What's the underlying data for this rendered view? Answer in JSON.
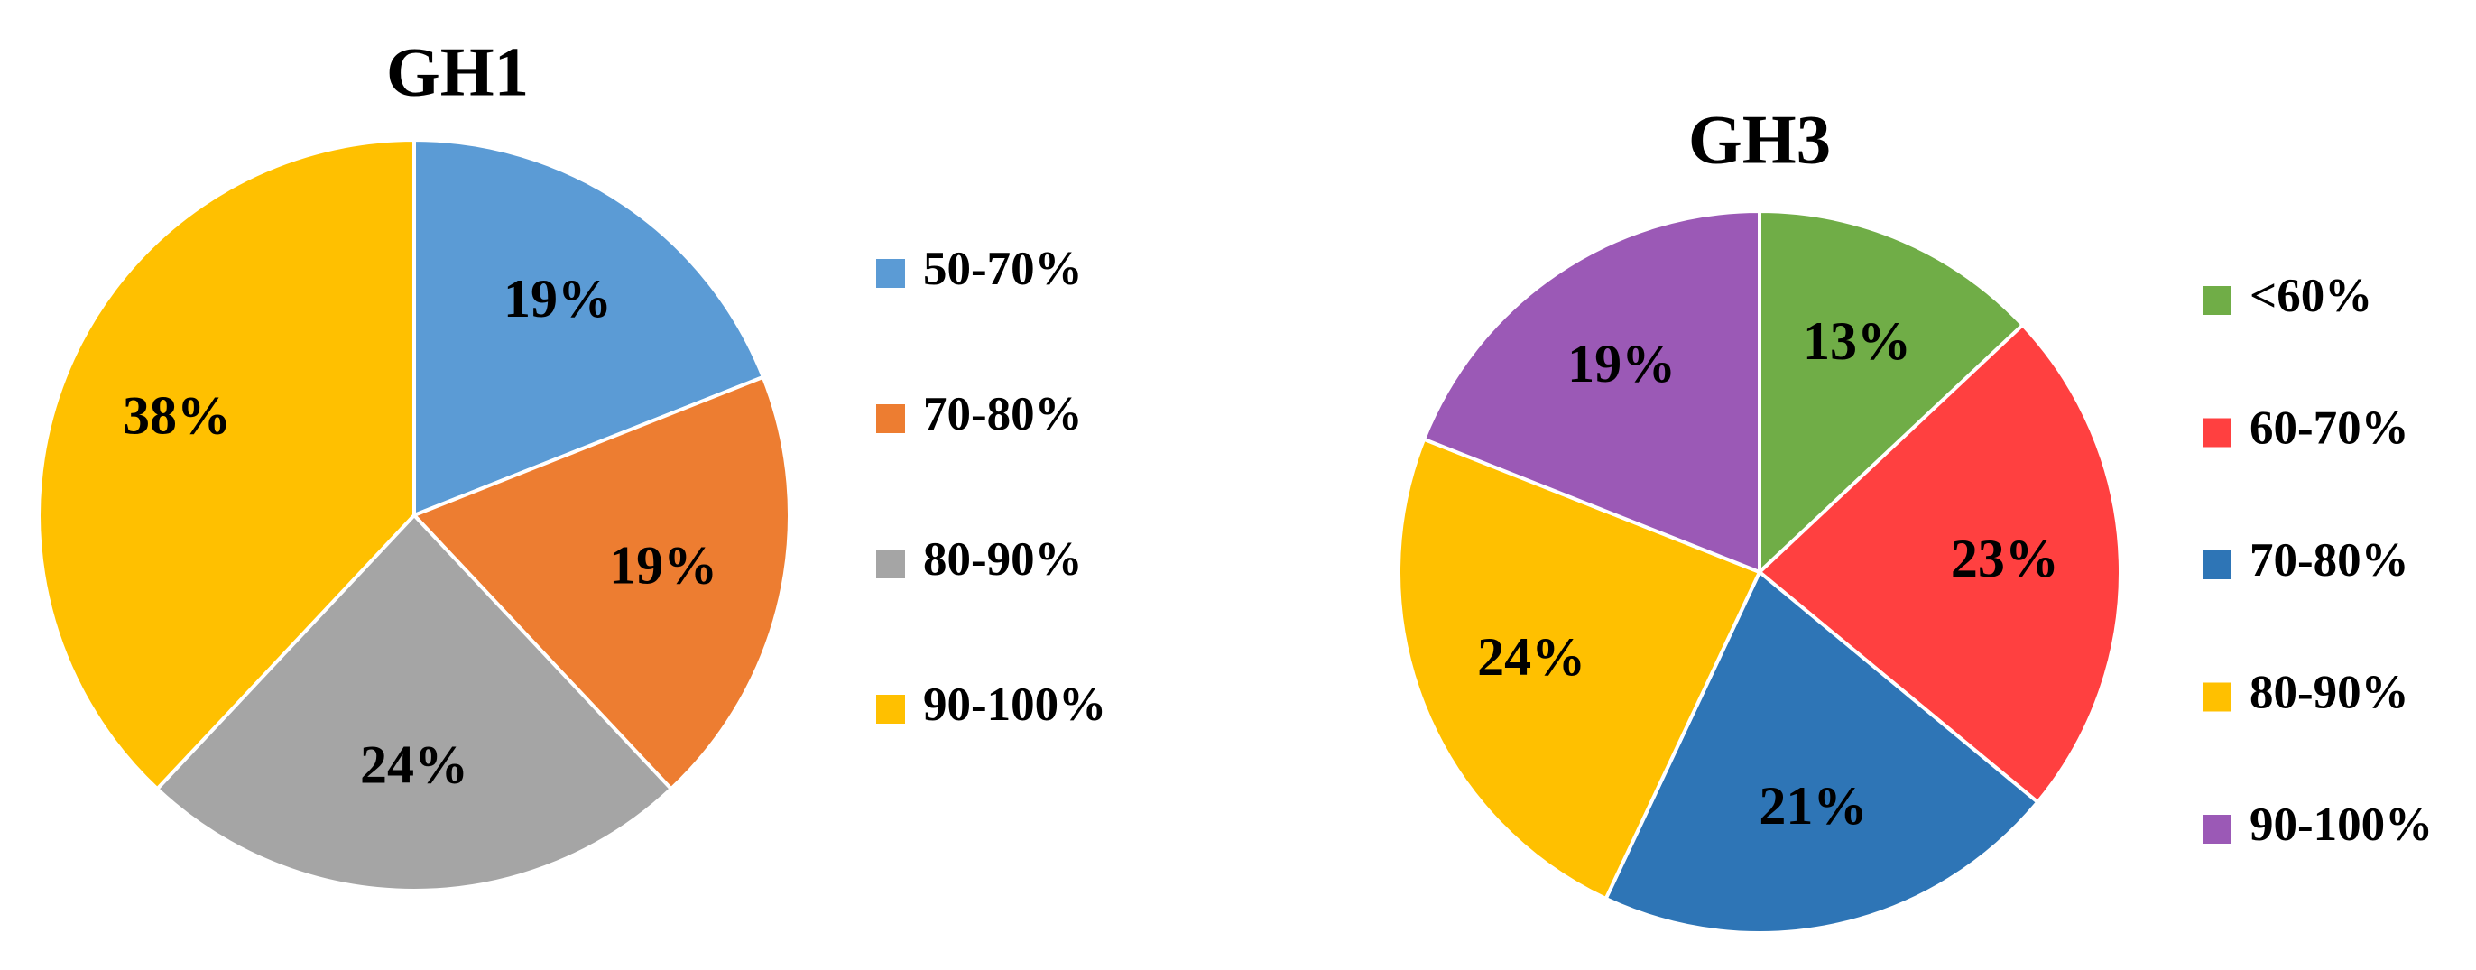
{
  "chart_data": [
    {
      "type": "pie",
      "title": "GH1",
      "categories": [
        "50-70%",
        "70-80%",
        "80-90%",
        "90-100%"
      ],
      "values": [
        19,
        19,
        24,
        38
      ],
      "value_labels": [
        "19%",
        "19%",
        "24%",
        "38%"
      ],
      "colors": [
        "#5b9bd5",
        "#ed7d31",
        "#a5a5a5",
        "#ffc000"
      ]
    },
    {
      "type": "pie",
      "title": "GH3",
      "categories": [
        "<60%",
        "60-70%",
        "70-80%",
        "80-90%",
        "90-100%"
      ],
      "values": [
        13,
        23,
        21,
        24,
        19
      ],
      "value_labels": [
        "13%",
        "23%",
        "21%",
        "24%",
        "19%"
      ],
      "colors": [
        "#70ad47",
        "#ff4040",
        "#2e75b6",
        "#ffc000",
        "#9b59b6"
      ]
    }
  ]
}
